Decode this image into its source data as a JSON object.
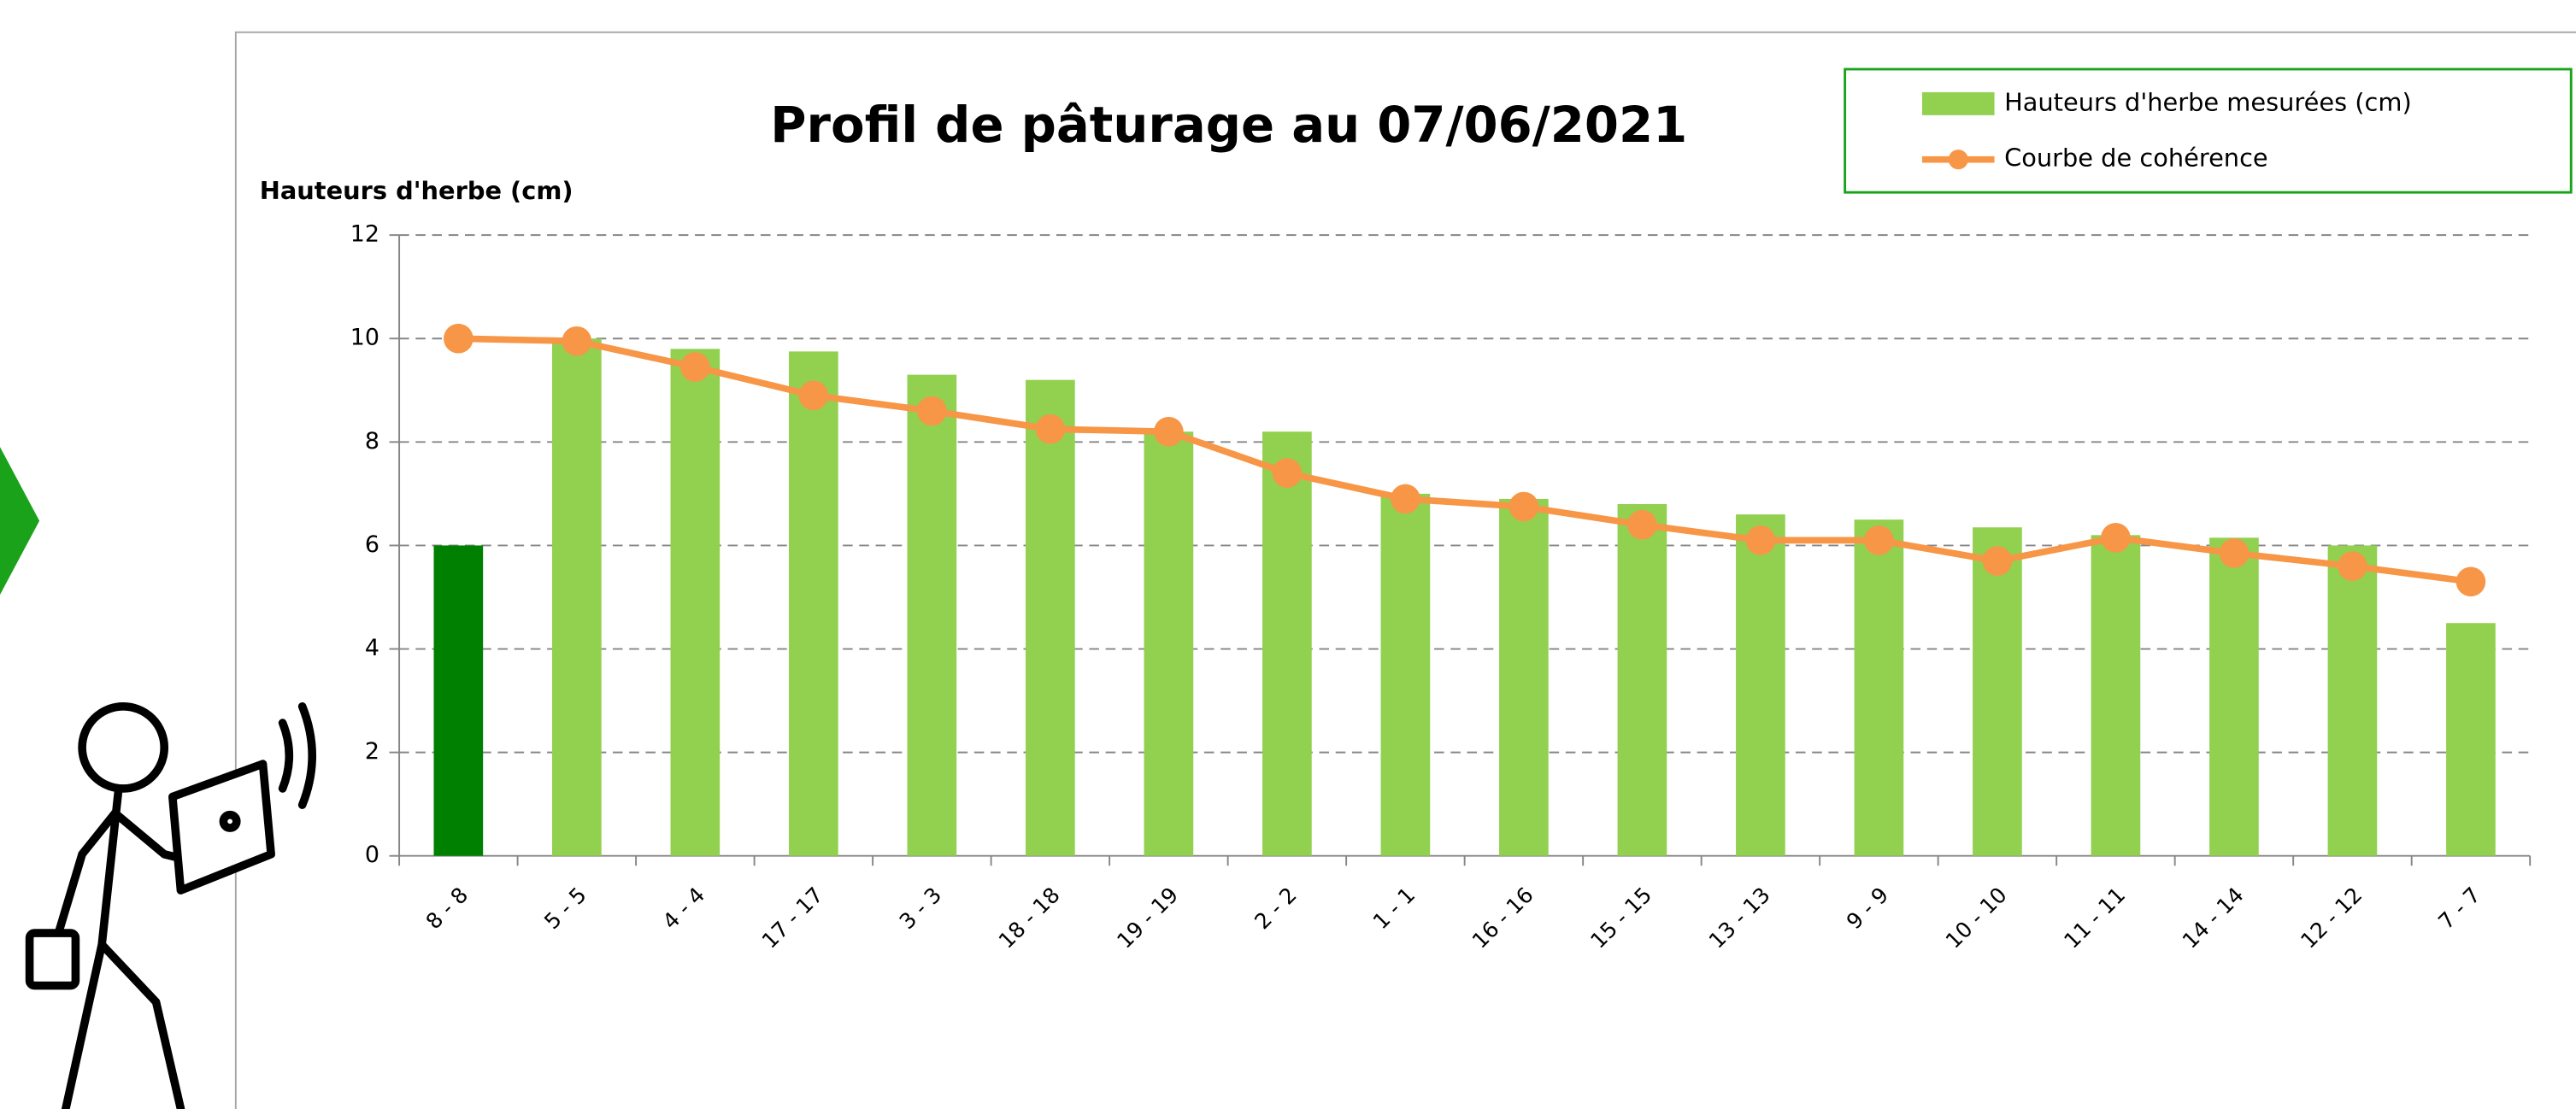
{
  "chart_data": {
    "type": "bar",
    "title": "Profil de pâturage au 07/06/2021",
    "y_label": "Hauteurs d'herbe (cm)",
    "categories": [
      "8 - 8",
      "5 - 5",
      "4 - 4",
      "17 - 17",
      "3 - 3",
      "18 - 18",
      "19 - 19",
      "2 - 2",
      "1 - 1",
      "16 - 16",
      "15 - 15",
      "13 - 13",
      "9 - 9",
      "10 - 10",
      "11 - 11",
      "14 - 14",
      "12 - 12",
      "7 - 7"
    ],
    "series": [
      {
        "name": "Hauteurs d'herbe mesurées (cm)",
        "type": "bar",
        "color": "#92d050",
        "colors": [
          "#008000",
          "#92d050",
          "#92d050",
          "#92d050",
          "#92d050",
          "#92d050",
          "#92d050",
          "#92d050",
          "#92d050",
          "#92d050",
          "#92d050",
          "#92d050",
          "#92d050",
          "#92d050",
          "#92d050",
          "#92d050",
          "#92d050",
          "#92d050"
        ],
        "values": [
          6,
          10,
          9.8,
          9.75,
          9.3,
          9.2,
          8.2,
          8.2,
          7,
          6.9,
          6.8,
          6.6,
          6.5,
          6.35,
          6.2,
          6.15,
          6,
          4.5
        ]
      },
      {
        "name": "Courbe de cohérence",
        "type": "line",
        "color": "#f79646",
        "values": [
          10,
          9.95,
          9.45,
          8.9,
          8.6,
          8.25,
          8.2,
          7.4,
          6.9,
          6.75,
          6.4,
          6.1,
          6.1,
          5.7,
          6.15,
          5.85,
          5.6,
          5.3
        ]
      }
    ],
    "ylim": [
      0,
      12
    ],
    "yticks": [
      0,
      2,
      4,
      6,
      8,
      10,
      12
    ],
    "grid": true,
    "legend": "top-right"
  }
}
